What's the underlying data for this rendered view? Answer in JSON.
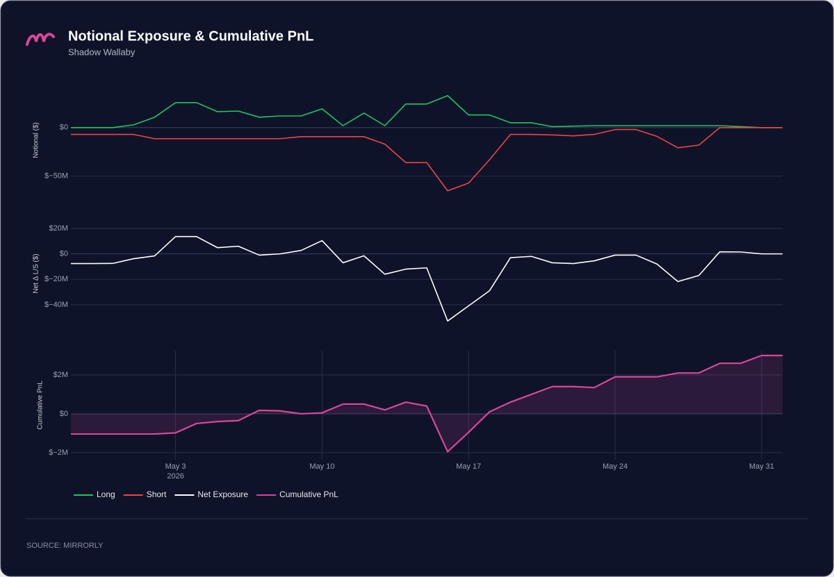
{
  "title": "Notional Exposure & Cumulative PnL",
  "subtitle": "Shadow Wallaby",
  "source": "SOURCE: MIRRORLY",
  "chart_data": [
    {
      "type": "line",
      "ylabel": "Notional ($)",
      "x": [
        "2026-04-28",
        "2026-04-29",
        "2026-04-30",
        "2026-05-01",
        "2026-05-02",
        "2026-05-03",
        "2026-05-04",
        "2026-05-05",
        "2026-05-06",
        "2026-05-07",
        "2026-05-08",
        "2026-05-09",
        "2026-05-10",
        "2026-05-11",
        "2026-05-12",
        "2026-05-13",
        "2026-05-14",
        "2026-05-15",
        "2026-05-16",
        "2026-05-17",
        "2026-05-18",
        "2026-05-19",
        "2026-05-20",
        "2026-05-21",
        "2026-05-22",
        "2026-05-23",
        "2026-05-24",
        "2026-05-25",
        "2026-05-26",
        "2026-05-27",
        "2026-05-28",
        "2026-05-29",
        "2026-05-30",
        "2026-05-31",
        "2026-06-01"
      ],
      "xlim": [
        "2026-04-28",
        "2026-06-01"
      ],
      "ylim": [
        -68000000,
        42000000
      ],
      "yticks": [
        {
          "value": 0,
          "label": "$0"
        },
        {
          "value": -50000000,
          "label": "$−50M"
        }
      ],
      "grid": true,
      "series": [
        {
          "name": "Long",
          "color": "#22c55e",
          "values": [
            0,
            0,
            0,
            2900000,
            10700000,
            25700000,
            25700000,
            16400000,
            17000000,
            10700000,
            12000000,
            12000000,
            19300000,
            2000000,
            15000000,
            2000000,
            24300000,
            24300000,
            32900000,
            13000000,
            13000000,
            5000000,
            5000000,
            1000000,
            1500000,
            2000000,
            2000000,
            2000000,
            2000000,
            2000000,
            2000000,
            2000000,
            1000000,
            0,
            0
          ]
        },
        {
          "name": "Short",
          "color": "#ef4444",
          "values": [
            -7000000,
            -7000000,
            -7000000,
            -7000000,
            -11400000,
            -11400000,
            -11400000,
            -11400000,
            -11400000,
            -11400000,
            -11400000,
            -9300000,
            -9300000,
            -9300000,
            -9300000,
            -17000000,
            -36000000,
            -36000000,
            -65000000,
            -57000000,
            -33000000,
            -7000000,
            -7000000,
            -7500000,
            -8500000,
            -7000000,
            -2000000,
            -2000000,
            -9000000,
            -20700000,
            -18000000,
            0,
            0,
            0,
            0
          ]
        }
      ]
    },
    {
      "type": "line",
      "ylabel": "Net Δ L/S ($)",
      "x": [
        "2026-04-28",
        "2026-04-29",
        "2026-04-30",
        "2026-05-01",
        "2026-05-02",
        "2026-05-03",
        "2026-05-04",
        "2026-05-05",
        "2026-05-06",
        "2026-05-07",
        "2026-05-08",
        "2026-05-09",
        "2026-05-10",
        "2026-05-11",
        "2026-05-12",
        "2026-05-13",
        "2026-05-14",
        "2026-05-15",
        "2026-05-16",
        "2026-05-17",
        "2026-05-18",
        "2026-05-19",
        "2026-05-20",
        "2026-05-21",
        "2026-05-22",
        "2026-05-23",
        "2026-05-24",
        "2026-05-25",
        "2026-05-26",
        "2026-05-27",
        "2026-05-28",
        "2026-05-29",
        "2026-05-30",
        "2026-05-31",
        "2026-06-01"
      ],
      "xlim": [
        "2026-04-28",
        "2026-06-01"
      ],
      "ylim": [
        -57000000,
        26000000
      ],
      "yticks": [
        {
          "value": 20000000,
          "label": "$20M"
        },
        {
          "value": 0,
          "label": "$0"
        },
        {
          "value": -20000000,
          "label": "$−20M"
        },
        {
          "value": -40000000,
          "label": "$−40M"
        }
      ],
      "grid": true,
      "series": [
        {
          "name": "Net Exposure",
          "color": "#ffffff",
          "values": [
            -7600000,
            -7600000,
            -7500000,
            -3800000,
            -1600000,
            13600000,
            13600000,
            4900000,
            6000000,
            -1000000,
            0,
            2700000,
            10400000,
            -7000000,
            -1500000,
            -16000000,
            -12000000,
            -11000000,
            -52800000,
            -40900000,
            -29000000,
            -3000000,
            -2000000,
            -7000000,
            -7600000,
            -5500000,
            -1000000,
            -1000000,
            -8000000,
            -21800000,
            -17000000,
            1600000,
            1500000,
            0,
            0
          ]
        }
      ]
    },
    {
      "type": "area",
      "ylabel": "Cumulative PnL",
      "x": [
        "2026-04-28",
        "2026-04-29",
        "2026-04-30",
        "2026-05-01",
        "2026-05-02",
        "2026-05-03",
        "2026-05-04",
        "2026-05-05",
        "2026-05-06",
        "2026-05-07",
        "2026-05-08",
        "2026-05-09",
        "2026-05-10",
        "2026-05-11",
        "2026-05-12",
        "2026-05-13",
        "2026-05-14",
        "2026-05-15",
        "2026-05-16",
        "2026-05-17",
        "2026-05-18",
        "2026-05-19",
        "2026-05-20",
        "2026-05-21",
        "2026-05-22",
        "2026-05-23",
        "2026-05-24",
        "2026-05-25",
        "2026-05-26",
        "2026-05-27",
        "2026-05-28",
        "2026-05-29",
        "2026-05-30",
        "2026-05-31",
        "2026-06-01"
      ],
      "xlim": [
        "2026-04-28",
        "2026-06-01"
      ],
      "xticks": [
        {
          "value": "2026-05-03",
          "label": "May 3"
        },
        {
          "value": "2026-05-10",
          "label": "May 10"
        },
        {
          "value": "2026-05-17",
          "label": "May 17"
        },
        {
          "value": "2026-05-24",
          "label": "May 24"
        },
        {
          "value": "2026-05-31",
          "label": "May 31"
        }
      ],
      "x_year": "2026",
      "ylim": [
        -2360000,
        3250000
      ],
      "yticks": [
        {
          "value": 2000000,
          "label": "$2M"
        },
        {
          "value": 0,
          "label": "$0"
        },
        {
          "value": -2000000,
          "label": "$−2M"
        }
      ],
      "grid": true,
      "xgrid": true,
      "series": [
        {
          "name": "Cumulative PnL",
          "color": "#d9479a",
          "values": [
            -1040000,
            -1040000,
            -1040000,
            -1040000,
            -1040000,
            -980000,
            -500000,
            -400000,
            -350000,
            180000,
            150000,
            0,
            50000,
            500000,
            500000,
            200000,
            600000,
            400000,
            -1950000,
            -950000,
            100000,
            600000,
            1000000,
            1400000,
            1400000,
            1350000,
            1900000,
            1900000,
            1900000,
            2100000,
            2100000,
            2600000,
            2600000,
            3000000,
            3000000
          ]
        }
      ]
    }
  ]
}
